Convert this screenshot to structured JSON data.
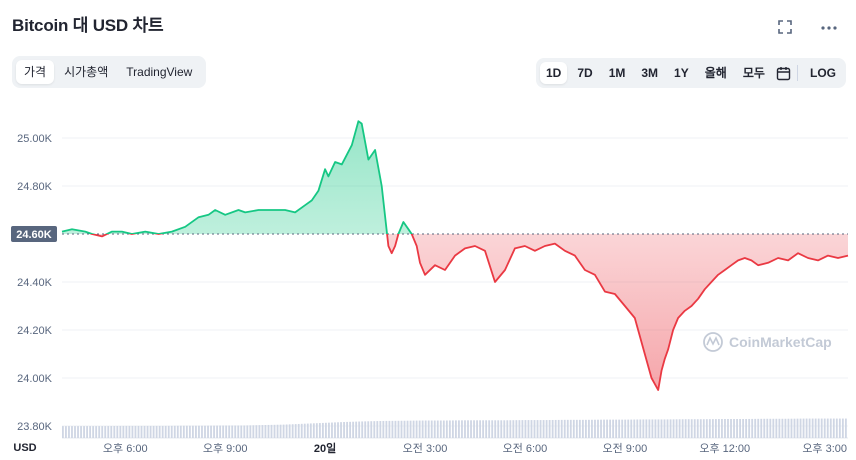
{
  "header": {
    "title": "Bitcoin 대 USD 차트",
    "fullscreen_icon": "expand-icon",
    "more_icon": "more-horizontal-icon"
  },
  "view_tabs": [
    {
      "label": "가격",
      "active": true
    },
    {
      "label": "시가총액",
      "active": false
    },
    {
      "label": "TradingView",
      "active": false
    }
  ],
  "range_buttons": [
    {
      "label": "1D",
      "active": true
    },
    {
      "label": "7D",
      "active": false
    },
    {
      "label": "1M",
      "active": false
    },
    {
      "label": "3M",
      "active": false
    },
    {
      "label": "1Y",
      "active": false
    },
    {
      "label": "올해",
      "active": false
    },
    {
      "label": "모두",
      "active": false
    }
  ],
  "calendar_icon": "calendar-icon",
  "log_label": "LOG",
  "watermark": "CoinMarketCap",
  "colors": {
    "up": "#16c784",
    "down": "#ea3943",
    "baseline": "#58667e",
    "volume": "#cfd6e4"
  },
  "chart_data": {
    "type": "area",
    "baseline_value": 24.6,
    "baseline_label": "24.60K",
    "currency_label": "USD",
    "ylim": [
      23.75,
      25.15
    ],
    "y_unit": "K USD",
    "ytick_labels": [
      "25.00K",
      "24.80K",
      "24.60K",
      "24.40K",
      "24.20K",
      "24.00K",
      "23.80K"
    ],
    "ytick_values": [
      25.0,
      24.8,
      24.6,
      24.4,
      24.2,
      24.0,
      23.8
    ],
    "xticks": [
      {
        "label": "오후 6:00",
        "t": 1.0,
        "bold": false
      },
      {
        "label": "오후 9:00",
        "t": 4.0,
        "bold": false
      },
      {
        "label": "20일",
        "t": 7.0,
        "bold": true
      },
      {
        "label": "오전 3:00",
        "t": 10.0,
        "bold": false
      },
      {
        "label": "오전 6:00",
        "t": 13.0,
        "bold": false
      },
      {
        "label": "오전 9:00",
        "t": 16.0,
        "bold": false
      },
      {
        "label": "오후 12:00",
        "t": 19.0,
        "bold": false
      },
      {
        "label": "오후 3:00",
        "t": 22.0,
        "bold": false
      }
    ],
    "xlim": [
      -0.9,
      22.7
    ],
    "series": [
      {
        "x": [
          -0.9,
          -0.6,
          -0.2,
          0.0,
          0.3,
          0.6,
          0.9,
          1.2,
          1.6,
          2.0,
          2.4,
          2.8,
          3.2,
          3.5,
          3.7,
          4.0,
          4.4,
          4.6,
          5.0,
          5.4,
          5.8,
          6.1,
          6.4,
          6.6,
          6.8,
          7.0,
          7.1,
          7.3,
          7.5,
          7.65,
          7.8,
          8.0,
          8.1,
          8.3,
          8.5,
          8.7,
          8.9,
          9.0,
          9.1,
          9.2,
          9.35,
          9.5,
          9.6,
          9.75,
          9.85,
          10.0,
          10.3,
          10.6,
          10.9,
          11.2,
          11.5,
          11.8,
          12.1,
          12.4,
          12.7,
          13.0,
          13.3,
          13.6,
          13.9,
          14.2,
          14.5,
          14.8,
          15.1,
          15.4,
          15.7,
          16.0,
          16.3,
          16.6,
          16.8,
          17.0,
          17.1,
          17.2,
          17.3,
          17.45,
          17.6,
          17.8,
          18.0,
          18.2,
          18.4,
          18.6,
          18.8,
          19.0,
          19.2,
          19.4,
          19.6,
          19.8,
          20.0,
          20.3,
          20.6,
          20.9,
          21.2,
          21.5,
          21.8,
          22.1,
          22.4,
          22.7
        ],
        "y": [
          24.61,
          24.62,
          24.61,
          24.6,
          24.59,
          24.61,
          24.61,
          24.6,
          24.61,
          24.6,
          24.61,
          24.63,
          24.67,
          24.68,
          24.7,
          24.68,
          24.7,
          24.69,
          24.7,
          24.7,
          24.7,
          24.69,
          24.72,
          24.74,
          24.78,
          24.87,
          24.84,
          24.9,
          24.89,
          24.93,
          24.97,
          25.07,
          25.06,
          24.91,
          24.95,
          24.8,
          24.55,
          24.52,
          24.55,
          24.6,
          24.65,
          24.62,
          24.6,
          24.55,
          24.48,
          24.43,
          24.47,
          24.45,
          24.51,
          24.54,
          24.55,
          24.53,
          24.4,
          24.45,
          24.54,
          24.55,
          24.53,
          24.55,
          24.56,
          24.53,
          24.51,
          24.45,
          24.43,
          24.36,
          24.35,
          24.3,
          24.25,
          24.1,
          24.0,
          23.95,
          24.03,
          24.08,
          24.12,
          24.2,
          24.25,
          24.28,
          24.3,
          24.33,
          24.37,
          24.4,
          24.43,
          24.45,
          24.47,
          24.49,
          24.5,
          24.49,
          24.47,
          24.48,
          24.5,
          24.49,
          24.52,
          24.5,
          24.49,
          24.51,
          24.5,
          24.51
        ]
      }
    ],
    "volume_relative": [
      0.55,
      0.55,
      0.55,
      0.56,
      0.56,
      0.56,
      0.57,
      0.57,
      0.58,
      0.58,
      0.6,
      0.62,
      0.66,
      0.7,
      0.74,
      0.77,
      0.79,
      0.8,
      0.81,
      0.81,
      0.82,
      0.82,
      0.82,
      0.83,
      0.83,
      0.84,
      0.84,
      0.85,
      0.85,
      0.86,
      0.86,
      0.87,
      0.87,
      0.88,
      0.88,
      0.89,
      0.89,
      0.9,
      0.9,
      0.9
    ]
  }
}
